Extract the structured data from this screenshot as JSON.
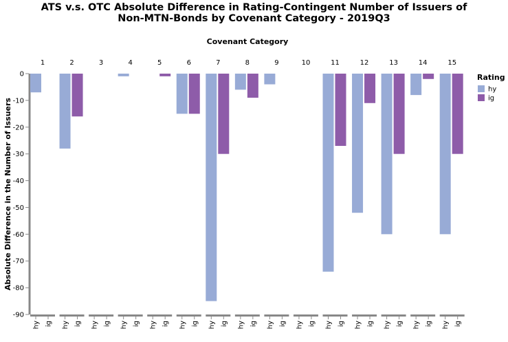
{
  "chart_data": {
    "type": "bar",
    "title_lines": [
      "ATS v.s. OTC Absolute Difference in Rating-Contingent Number of Issuers of",
      "Non-MTN-Bonds by Covenant Category - 2019Q3"
    ],
    "column_header": "Covenant Category",
    "ylabel": "Absolute Difference in the Number of Issuers",
    "ylim": [
      -90,
      0
    ],
    "yticks": [
      0,
      -10,
      -20,
      -30,
      -40,
      -50,
      -60,
      -70,
      -80,
      -90
    ],
    "categories": [
      "1",
      "2",
      "3",
      "4",
      "5",
      "6",
      "7",
      "8",
      "9",
      "10",
      "11",
      "12",
      "13",
      "14",
      "15"
    ],
    "sub_categories": [
      "hy",
      "ig"
    ],
    "series": [
      {
        "name": "hy",
        "color": "#98abd6",
        "values": [
          -7,
          -28,
          0,
          -1,
          0,
          -15,
          -85,
          -6,
          -4,
          0,
          -74,
          -52,
          -60,
          -8,
          -60
        ]
      },
      {
        "name": "ig",
        "color": "#8e5ca9",
        "values": [
          0,
          -16,
          0,
          0,
          -1,
          -15,
          -30,
          -9,
          0,
          0,
          -27,
          -11,
          -30,
          -2,
          -30
        ]
      }
    ],
    "legend": {
      "title": "Rating",
      "position": "right"
    }
  }
}
